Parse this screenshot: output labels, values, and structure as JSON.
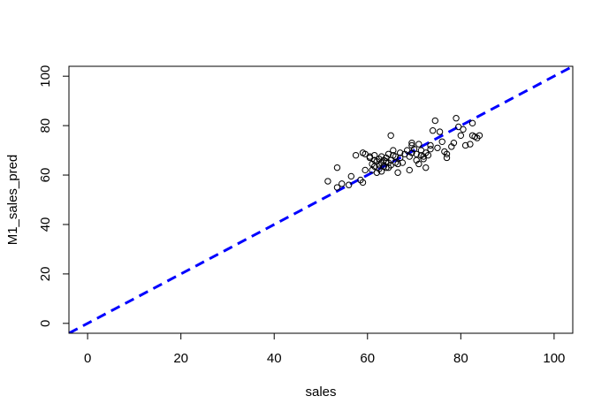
{
  "chart_data": {
    "type": "scatter",
    "title": "",
    "xlabel": "sales",
    "ylabel": "M1_sales_pred",
    "xlim": [
      -4,
      104
    ],
    "ylim": [
      -4,
      104
    ],
    "xticks": [
      0,
      20,
      40,
      60,
      80,
      100
    ],
    "yticks": [
      0,
      20,
      40,
      60,
      80,
      100
    ],
    "grid": false,
    "point_color": "#000000",
    "line_color": "#0000ff",
    "reference_line": {
      "style": "dashed",
      "x": [
        -4,
        104
      ],
      "y": [
        -4,
        104
      ]
    },
    "points": [
      [
        51.5,
        57.5
      ],
      [
        53.5,
        55.0
      ],
      [
        53.5,
        63.0
      ],
      [
        54.5,
        56.5
      ],
      [
        56.0,
        56.0
      ],
      [
        56.5,
        59.5
      ],
      [
        57.5,
        68.0
      ],
      [
        58.5,
        58.0
      ],
      [
        59.0,
        57.0
      ],
      [
        59.0,
        69.0
      ],
      [
        59.5,
        62.0
      ],
      [
        59.5,
        68.5
      ],
      [
        60.5,
        67.0
      ],
      [
        60.5,
        67.5
      ],
      [
        61.0,
        62.0
      ],
      [
        61.0,
        64.5
      ],
      [
        61.5,
        63.5
      ],
      [
        61.5,
        66.0
      ],
      [
        61.5,
        68.0
      ],
      [
        62.0,
        61.0
      ],
      [
        62.0,
        65.5
      ],
      [
        62.5,
        62.5
      ],
      [
        62.5,
        64.0
      ],
      [
        62.5,
        66.5
      ],
      [
        63.0,
        61.5
      ],
      [
        63.0,
        65.0
      ],
      [
        63.0,
        67.5
      ],
      [
        63.5,
        63.5
      ],
      [
        63.5,
        66.0
      ],
      [
        64.0,
        63.0
      ],
      [
        64.0,
        65.5
      ],
      [
        64.0,
        67.0
      ],
      [
        64.5,
        63.0
      ],
      [
        64.5,
        65.0
      ],
      [
        64.5,
        68.5
      ],
      [
        65.0,
        76.0
      ],
      [
        65.0,
        64.0
      ],
      [
        65.0,
        66.0
      ],
      [
        65.5,
        68.0
      ],
      [
        65.5,
        70.0
      ],
      [
        66.0,
        65.0
      ],
      [
        66.0,
        67.5
      ],
      [
        66.5,
        61.0
      ],
      [
        66.5,
        64.5
      ],
      [
        67.0,
        69.0
      ],
      [
        67.0,
        67.0
      ],
      [
        67.5,
        65.0
      ],
      [
        68.0,
        68.5
      ],
      [
        68.5,
        70.0
      ],
      [
        69.0,
        62.0
      ],
      [
        69.0,
        67.5
      ],
      [
        69.5,
        69.0
      ],
      [
        69.5,
        72.0
      ],
      [
        69.5,
        73.0
      ],
      [
        70.0,
        70.5
      ],
      [
        70.5,
        66.0
      ],
      [
        70.5,
        68.5
      ],
      [
        71.0,
        72.5
      ],
      [
        71.0,
        64.5
      ],
      [
        71.5,
        68.0
      ],
      [
        71.5,
        70.0
      ],
      [
        72.0,
        66.5
      ],
      [
        72.0,
        67.5
      ],
      [
        72.5,
        69.0
      ],
      [
        72.5,
        63.0
      ],
      [
        73.0,
        68.0
      ],
      [
        73.5,
        70.5
      ],
      [
        73.5,
        72.0
      ],
      [
        74.0,
        78.0
      ],
      [
        74.5,
        82.0
      ],
      [
        75.0,
        71.0
      ],
      [
        75.5,
        77.5
      ],
      [
        76.0,
        73.5
      ],
      [
        76.5,
        69.5
      ],
      [
        77.0,
        68.5
      ],
      [
        77.0,
        67.0
      ],
      [
        78.0,
        71.5
      ],
      [
        78.5,
        73.0
      ],
      [
        79.0,
        83.0
      ],
      [
        79.5,
        79.5
      ],
      [
        80.0,
        76.0
      ],
      [
        80.5,
        78.5
      ],
      [
        81.0,
        72.0
      ],
      [
        82.0,
        72.5
      ],
      [
        82.5,
        81.0
      ],
      [
        82.5,
        76.0
      ],
      [
        83.0,
        75.5
      ],
      [
        83.5,
        75.0
      ],
      [
        84.0,
        76.0
      ]
    ]
  }
}
